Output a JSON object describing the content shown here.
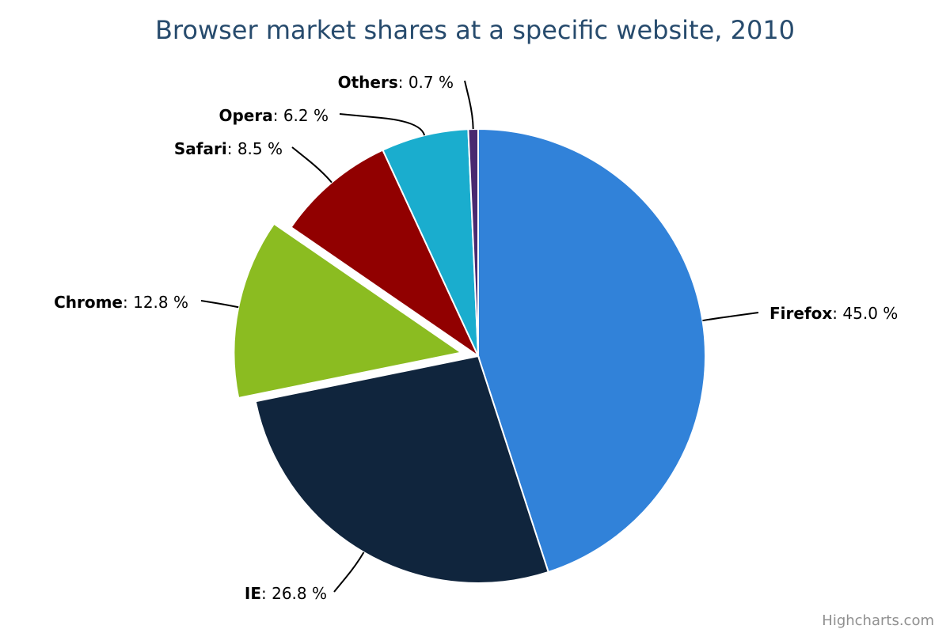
{
  "chart_data": {
    "type": "pie",
    "title": "Browser market shares at a specific website, 2010",
    "label_format": "{name}: {value} %",
    "slices": [
      {
        "name": "Firefox",
        "value": 45.0,
        "value_label": "45.0",
        "color": "#3182d9",
        "sliced": false,
        "label_side": "right"
      },
      {
        "name": "IE",
        "value": 26.8,
        "value_label": "26.8",
        "color": "#10253d",
        "sliced": false,
        "label_side": "left"
      },
      {
        "name": "Chrome",
        "value": 12.8,
        "value_label": "12.8",
        "color": "#8bbc21",
        "sliced": true,
        "label_side": "left"
      },
      {
        "name": "Safari",
        "value": 8.5,
        "value_label": "8.5",
        "color": "#910000",
        "sliced": false,
        "label_side": "left"
      },
      {
        "name": "Opera",
        "value": 6.2,
        "value_label": "6.2",
        "color": "#1aadce",
        "sliced": false,
        "label_side": "left"
      },
      {
        "name": "Others",
        "value": 0.7,
        "value_label": "0.7",
        "color": "#492970",
        "sliced": false,
        "label_side": "left"
      }
    ]
  },
  "credits": {
    "label": "Highcharts.com"
  }
}
